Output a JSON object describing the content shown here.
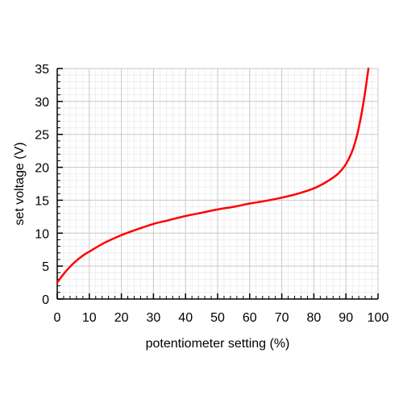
{
  "chart_data": {
    "type": "line",
    "title": "",
    "xlabel": "potentiometer setting (%)",
    "ylabel": "set voltage (V)",
    "xlim": [
      0,
      100
    ],
    "ylim": [
      0,
      35
    ],
    "x_ticks": [
      "0",
      "10",
      "20",
      "30",
      "40",
      "50",
      "60",
      "70",
      "80",
      "90",
      "100"
    ],
    "y_ticks": [
      "0",
      "5",
      "10",
      "15",
      "20",
      "25",
      "30",
      "35"
    ],
    "grid": true,
    "legend": "none",
    "colors": {
      "line": "#ff0000",
      "grid": "#c8c8c8",
      "axis": "#000000"
    },
    "series": [
      {
        "x": [
          0,
          2,
          5,
          8,
          10,
          15,
          20,
          25,
          30,
          35,
          40,
          45,
          50,
          55,
          60,
          65,
          70,
          75,
          80,
          84,
          87,
          89,
          90,
          91,
          92,
          93,
          94,
          95,
          96,
          97
        ],
        "y": [
          2.5,
          3.8,
          5.4,
          6.6,
          7.2,
          8.6,
          9.7,
          10.6,
          11.4,
          12.0,
          12.6,
          13.1,
          13.6,
          14.0,
          14.5,
          14.9,
          15.4,
          16.0,
          16.8,
          17.8,
          18.8,
          19.8,
          20.5,
          21.4,
          22.5,
          24.0,
          26.0,
          28.5,
          31.5,
          35.0
        ]
      }
    ]
  }
}
